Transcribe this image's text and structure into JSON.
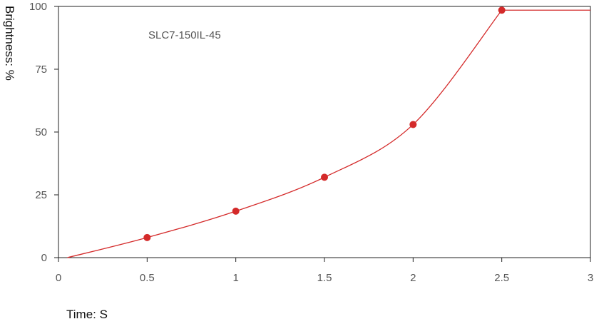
{
  "chart_data": {
    "type": "line",
    "annotation": "SLC7-150IL-45",
    "xlabel": "Time: S",
    "ylabel": "Brightness: %",
    "xlim": [
      0,
      3
    ],
    "ylim": [
      0,
      100
    ],
    "x_ticks": [
      "0",
      "0.5",
      "1",
      "1.5",
      "2",
      "2.5",
      "3"
    ],
    "y_ticks": [
      "0",
      "25",
      "50",
      "75",
      "100"
    ],
    "line_color": "#d42a2a",
    "curve": {
      "x": [
        0.05,
        0.5,
        1.0,
        1.5,
        2.0,
        2.5,
        3.0
      ],
      "y": [
        0,
        8,
        18.5,
        32,
        53,
        98.5,
        98.5
      ]
    },
    "markers": {
      "x": [
        0.5,
        1.0,
        1.5,
        2.0,
        2.5
      ],
      "y": [
        8,
        18.5,
        32,
        53,
        98.5
      ]
    }
  }
}
